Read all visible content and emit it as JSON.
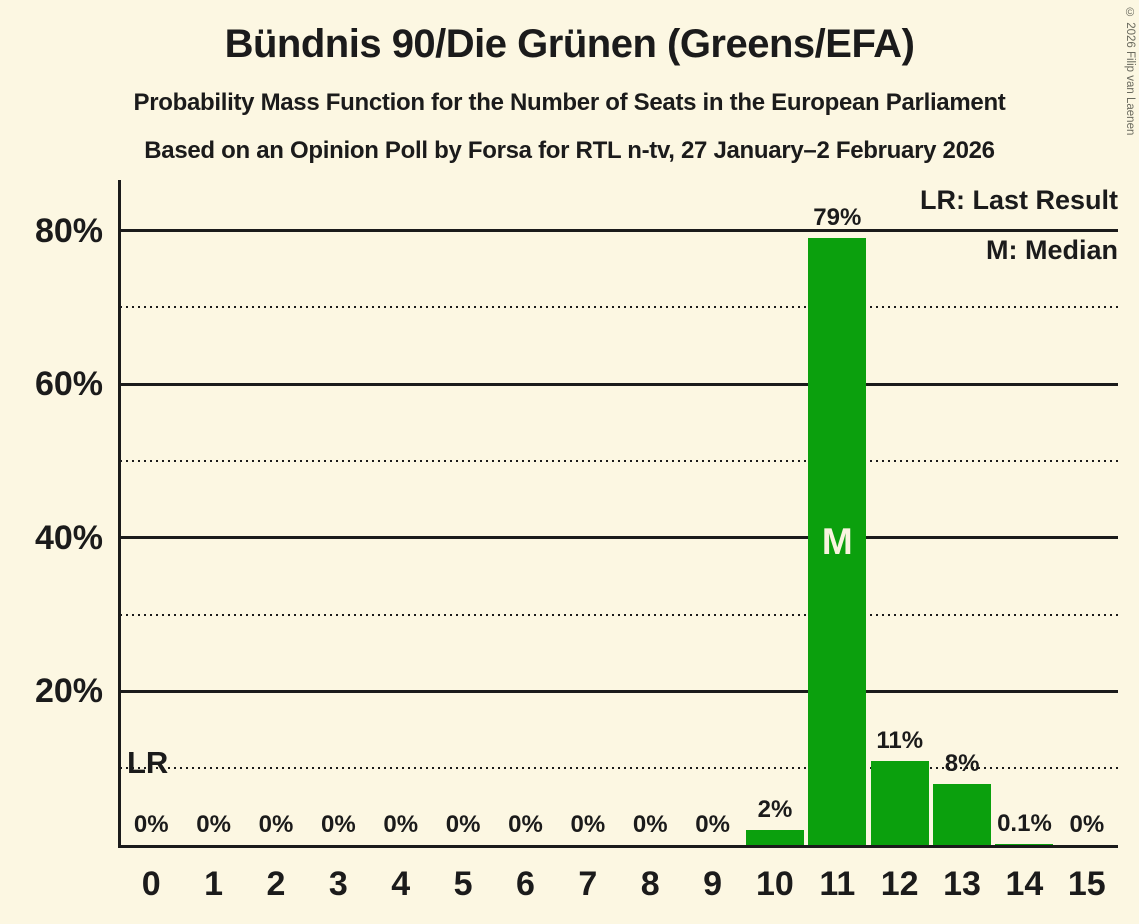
{
  "title": "Bündnis 90/Die Grünen (Greens/EFA)",
  "subtitle1": "Probability Mass Function for the Number of Seats in the European Parliament",
  "subtitle2": "Based on an Opinion Poll by Forsa for RTL n-tv, 27 January–2 February 2026",
  "copyright": "© 2026 Filip van Laenen",
  "legend": {
    "lr": "LR: Last Result",
    "m": "M: Median"
  },
  "annotations": {
    "lr": "LR",
    "median": "M"
  },
  "colors": {
    "background": "#FCF7E2",
    "bar": "#0BA00D",
    "text": "#1B1B1B",
    "line": "#1B1B1B",
    "median_text": "#F9F4DF",
    "copyright_text": "#6A6A5E"
  },
  "chart_data": {
    "type": "bar",
    "title": "Bündnis 90/Die Grünen (Greens/EFA)",
    "subtitle": "Probability Mass Function for the Number of Seats in the European Parliament",
    "source_line": "Based on an Opinion Poll by Forsa for RTL n-tv, 27 January–2 February 2026",
    "categories": [
      "0",
      "1",
      "2",
      "3",
      "4",
      "5",
      "6",
      "7",
      "8",
      "9",
      "10",
      "11",
      "12",
      "13",
      "14",
      "15"
    ],
    "values": [
      0,
      0,
      0,
      0,
      0,
      0,
      0,
      0,
      0,
      0,
      2,
      79,
      11,
      8,
      0.1,
      0
    ],
    "bar_labels": [
      "0%",
      "0%",
      "0%",
      "0%",
      "0%",
      "0%",
      "0%",
      "0%",
      "0%",
      "0%",
      "2%",
      "79%",
      "11%",
      "8%",
      "0.1%",
      "0%"
    ],
    "xlabel": "",
    "ylabel": "",
    "ylim": [
      0,
      86.6
    ],
    "y_ticks_solid": [
      20,
      40,
      60,
      80
    ],
    "y_tick_labels": [
      "20%",
      "40%",
      "60%",
      "80%"
    ],
    "y_ticks_dotted": [
      10,
      30,
      50,
      70
    ],
    "median_category": "11",
    "last_result_line_pct": 10,
    "grid": "horizontal",
    "legend_position": "top-right"
  }
}
